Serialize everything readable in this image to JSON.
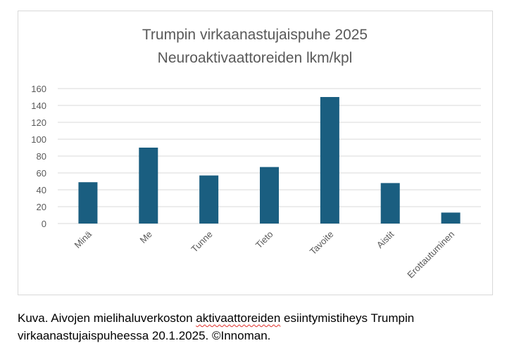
{
  "chart_data": {
    "type": "bar",
    "title": "Trumpin virkaanastujaispuhe 2025",
    "subtitle": "Neuroaktivaattoreiden lkm/kpl",
    "categories": [
      "Minä",
      "Me",
      "Tunne",
      "Tieto",
      "Tavoite",
      "Aistit",
      "Erottautuminen"
    ],
    "values": [
      49,
      90,
      57,
      67,
      150,
      48,
      13
    ],
    "yticks": [
      "0",
      "20",
      "40",
      "60",
      "80",
      "100",
      "120",
      "140",
      "160"
    ],
    "ylim": [
      0,
      160
    ],
    "xlabel": "",
    "ylabel": "",
    "grid": true,
    "legend": "none",
    "bar_color": "#1a5e80"
  },
  "caption": {
    "before": "Kuva. Aivojen mielihaluverkoston ",
    "misspelled": "aktivaattoreiden",
    "after": " esiintymistiheys Trumpin virkaanastujaispuheessa 20.1.2025. ©Innoman."
  }
}
